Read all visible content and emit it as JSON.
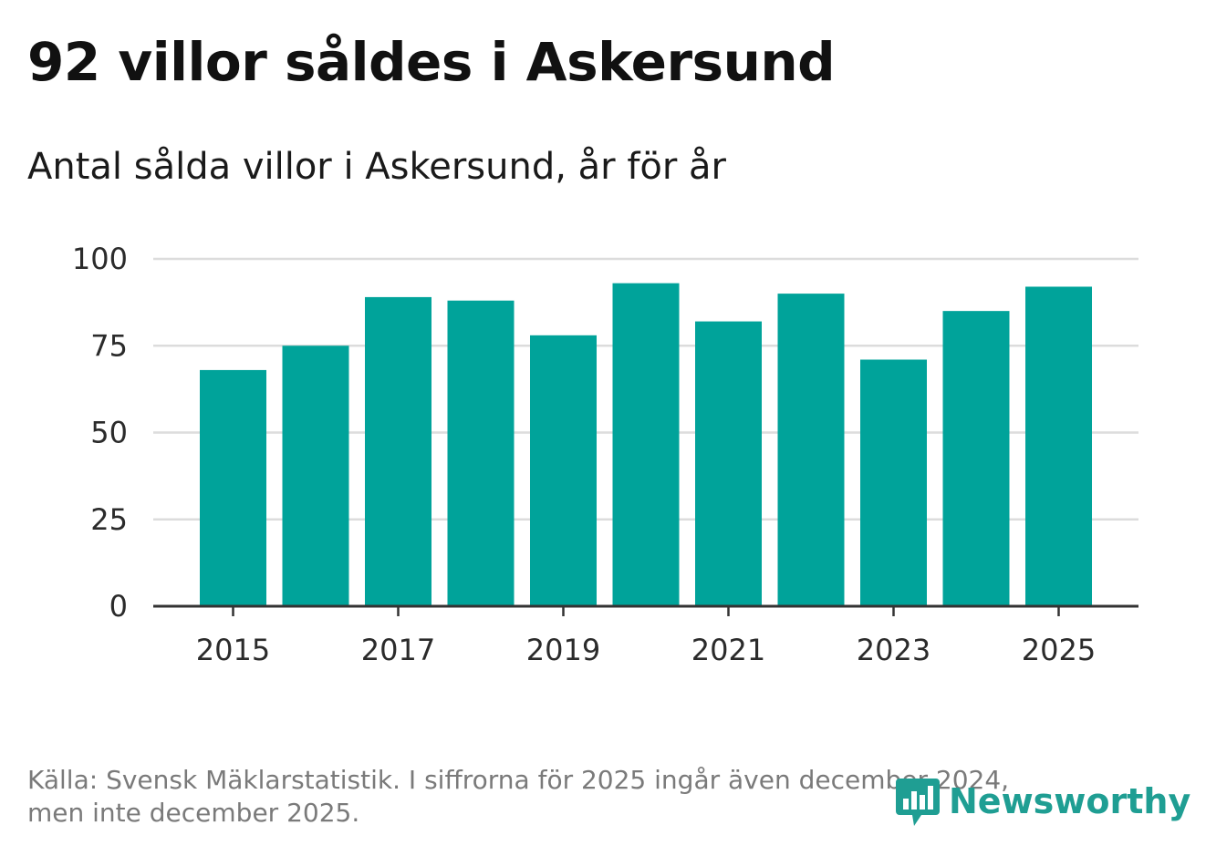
{
  "chart_data": {
    "type": "bar",
    "title": "92 villor såldes i Askersund",
    "subtitle": "Antal sålda villor i Askersund, år för år",
    "categories": [
      "2015",
      "2016",
      "2017",
      "2018",
      "2019",
      "2020",
      "2021",
      "2022",
      "2023",
      "2024",
      "2025"
    ],
    "values": [
      68,
      75,
      89,
      88,
      78,
      93,
      82,
      90,
      71,
      85,
      92
    ],
    "x_tick_labels": [
      "2015",
      "2017",
      "2019",
      "2021",
      "2023",
      "2025"
    ],
    "y_ticks": [
      0,
      25,
      50,
      75,
      100
    ],
    "ylim": [
      0,
      100
    ],
    "xlabel": "",
    "ylabel": "",
    "grid": true,
    "bar_color": "#00a39a"
  },
  "footer": {
    "source_line1": "Källa: Svensk Mäklarstatistik. I siffrorna för 2025 ingår även december 2024,",
    "source_line2": "men inte december 2025."
  },
  "logo": {
    "text": "Newsworthy",
    "icon": "newsworthy-bar-icon",
    "color": "#1f9e93"
  }
}
